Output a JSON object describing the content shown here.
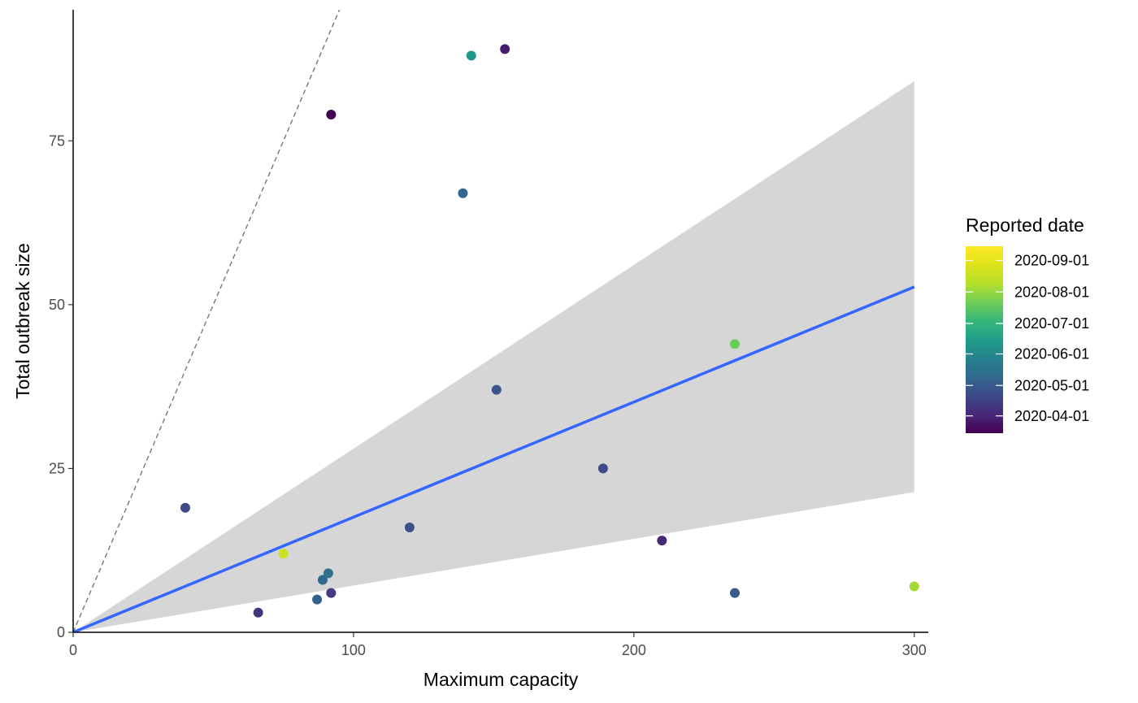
{
  "chart_data": {
    "type": "scatter",
    "xlabel": "Maximum capacity",
    "ylabel": "Total outbreak size",
    "xlim": [
      0,
      305
    ],
    "ylim": [
      0,
      95
    ],
    "x_ticks": [
      0,
      100,
      200,
      300
    ],
    "y_ticks": [
      0,
      25,
      50,
      75
    ],
    "grid": false,
    "points": [
      {
        "x": 40,
        "y": 19,
        "date": "2020-04-20"
      },
      {
        "x": 66,
        "y": 3,
        "date": "2020-04-08"
      },
      {
        "x": 75,
        "y": 12,
        "date": "2020-08-20"
      },
      {
        "x": 87,
        "y": 5,
        "date": "2020-05-05"
      },
      {
        "x": 89,
        "y": 8,
        "date": "2020-05-10"
      },
      {
        "x": 91,
        "y": 9,
        "date": "2020-05-15"
      },
      {
        "x": 92,
        "y": 79,
        "date": "2020-03-15"
      },
      {
        "x": 92,
        "y": 6,
        "date": "2020-04-12"
      },
      {
        "x": 120,
        "y": 16,
        "date": "2020-04-25"
      },
      {
        "x": 139,
        "y": 67,
        "date": "2020-05-08"
      },
      {
        "x": 142,
        "y": 88,
        "date": "2020-06-10"
      },
      {
        "x": 151,
        "y": 37,
        "date": "2020-04-28"
      },
      {
        "x": 154,
        "y": 89,
        "date": "2020-03-28"
      },
      {
        "x": 189,
        "y": 25,
        "date": "2020-04-22"
      },
      {
        "x": 210,
        "y": 14,
        "date": "2020-04-02"
      },
      {
        "x": 236,
        "y": 44,
        "date": "2020-07-20"
      },
      {
        "x": 236,
        "y": 6,
        "date": "2020-05-01"
      },
      {
        "x": 300,
        "y": 7,
        "date": "2020-08-05"
      }
    ],
    "fit_line": {
      "slope": 0.1757,
      "intercept": 0,
      "x_range": [
        0,
        300
      ],
      "color": "#3366FF"
    },
    "ribbon": {
      "lower_slope": 0.0713,
      "upper_slope": 0.2803,
      "color": "#D6D6D6"
    },
    "reference_line": {
      "slope": 1,
      "intercept": 0,
      "style": "dashed",
      "color": "#777777"
    },
    "colorbar": {
      "title": "Reported date",
      "labels": [
        "2020-09-01",
        "2020-08-01",
        "2020-07-01",
        "2020-06-01",
        "2020-05-01",
        "2020-04-01"
      ],
      "date_min": "2020-03-15",
      "date_max": "2020-09-15",
      "palette": "viridis"
    }
  }
}
